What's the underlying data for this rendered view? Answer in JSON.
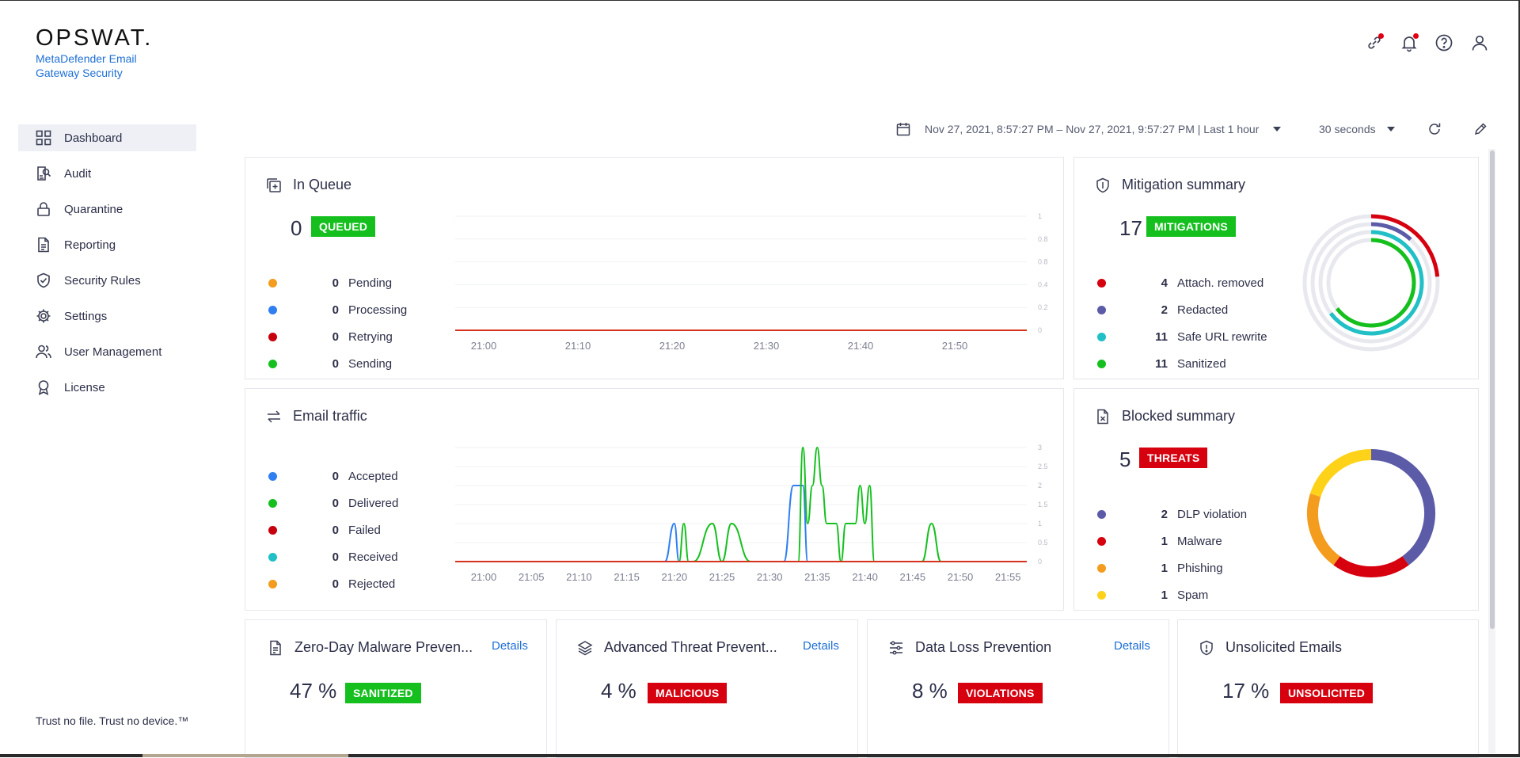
{
  "brand": {
    "logo": "OPSWAT.",
    "product": "MetaDefender Email Gateway Security",
    "tagline": "Trust no file. Trust no device.™"
  },
  "nav": [
    {
      "label": "Dashboard",
      "icon": "grid-icon",
      "active": true
    },
    {
      "label": "Audit",
      "icon": "audit-icon"
    },
    {
      "label": "Quarantine",
      "icon": "lock-icon"
    },
    {
      "label": "Reporting",
      "icon": "document-icon"
    },
    {
      "label": "Security Rules",
      "icon": "shield-check-icon"
    },
    {
      "label": "Settings",
      "icon": "gear-icon"
    },
    {
      "label": "User Management",
      "icon": "users-icon"
    },
    {
      "label": "License",
      "icon": "award-icon"
    }
  ],
  "toolbar": {
    "date_range": "Nov 27, 2021, 8:57:27 PM – Nov 27, 2021, 9:57:27 PM | Last 1 hour",
    "refresh_interval": "30 seconds"
  },
  "colors": {
    "accent": "#1d6fd6",
    "green": "#15c01e",
    "red": "#d6000f",
    "orange": "#f39c1e",
    "blue": "#2f7ff2",
    "purple": "#5b5ba8",
    "teal": "#21c0c6",
    "yellow": "#ffd21a",
    "darkred": "#c6000f"
  },
  "in_queue": {
    "title": "In Queue",
    "count": "0",
    "badge": "QUEUED",
    "items": [
      {
        "value": "0",
        "label": "Pending",
        "color": "#f39c1e"
      },
      {
        "value": "0",
        "label": "Processing",
        "color": "#2f7ff2"
      },
      {
        "value": "0",
        "label": "Retrying",
        "color": "#c6000f"
      },
      {
        "value": "0",
        "label": "Sending",
        "color": "#15c01e"
      }
    ]
  },
  "mitigation": {
    "title": "Mitigation summary",
    "count": "17",
    "badge": "MITIGATIONS",
    "items": [
      {
        "value": "4",
        "label": "Attach. removed",
        "color": "#d6000f"
      },
      {
        "value": "2",
        "label": "Redacted",
        "color": "#5b5ba8"
      },
      {
        "value": "11",
        "label": "Safe URL rewrite",
        "color": "#21c0c6"
      },
      {
        "value": "11",
        "label": "Sanitized",
        "color": "#15c01e"
      }
    ]
  },
  "email_traffic": {
    "title": "Email traffic",
    "items": [
      {
        "value": "0",
        "label": "Accepted",
        "color": "#2f7ff2"
      },
      {
        "value": "0",
        "label": "Delivered",
        "color": "#15c01e"
      },
      {
        "value": "0",
        "label": "Failed",
        "color": "#c6000f"
      },
      {
        "value": "0",
        "label": "Received",
        "color": "#21c0c6"
      },
      {
        "value": "0",
        "label": "Rejected",
        "color": "#f39c1e"
      }
    ]
  },
  "blocked": {
    "title": "Blocked summary",
    "count": "5",
    "badge": "THREATS",
    "items": [
      {
        "value": "2",
        "label": "DLP violation",
        "color": "#5b5ba8"
      },
      {
        "value": "1",
        "label": "Malware",
        "color": "#d6000f"
      },
      {
        "value": "1",
        "label": "Phishing",
        "color": "#f39c1e"
      },
      {
        "value": "1",
        "label": "Spam",
        "color": "#ffd21a"
      }
    ]
  },
  "bottom_cards": [
    {
      "title": "Zero-Day Malware Preven...",
      "details": "Details",
      "percent": "47 %",
      "badge": "SANITIZED",
      "badge_color": "green",
      "icon": "file-scan-icon"
    },
    {
      "title": "Advanced Threat Prevent...",
      "details": "Details",
      "percent": "4 %",
      "badge": "MALICIOUS",
      "badge_color": "red",
      "icon": "layers-icon"
    },
    {
      "title": "Data Loss Prevention",
      "details": "Details",
      "percent": "8 %",
      "badge": "VIOLATIONS",
      "badge_color": "red",
      "icon": "sliders-icon"
    },
    {
      "title": "Unsolicited Emails",
      "details": "",
      "percent": "17 %",
      "badge": "UNSOLICITED",
      "badge_color": "red",
      "icon": "shield-alert-icon"
    }
  ],
  "chart_data": [
    {
      "type": "line",
      "title": "In Queue",
      "x": [
        "21:00",
        "21:10",
        "21:20",
        "21:30",
        "21:40",
        "21:50"
      ],
      "y_ticks": [
        "1",
        "0.8",
        "0.8",
        "0.4",
        "0.2",
        "0"
      ],
      "ylim": [
        0,
        1
      ],
      "series": [
        {
          "name": "Pending",
          "color": "#f39c1e",
          "values": [
            0,
            0,
            0,
            0,
            0,
            0
          ]
        },
        {
          "name": "Processing",
          "color": "#2f7ff2",
          "values": [
            0,
            0,
            0,
            0,
            0,
            0
          ]
        },
        {
          "name": "Retrying",
          "color": "#c6000f",
          "values": [
            0,
            0,
            0,
            0,
            0,
            0
          ]
        },
        {
          "name": "Sending",
          "color": "#15c01e",
          "values": [
            0,
            0,
            0,
            0,
            0,
            0
          ]
        }
      ],
      "grid": true
    },
    {
      "type": "line",
      "title": "Email traffic",
      "x_ticks": [
        "21:00",
        "21:05",
        "21:10",
        "21:15",
        "21:20",
        "21:25",
        "21:30",
        "21:35",
        "21:40",
        "21:45",
        "21:50",
        "21:55"
      ],
      "y_ticks": [
        "3",
        "2.5",
        "2",
        "1.5",
        "1",
        "0.5",
        "0"
      ],
      "ylim": [
        0,
        3
      ],
      "x_minutes": [
        0,
        22,
        23,
        23.5,
        24,
        24.5,
        25,
        27,
        28,
        29,
        31,
        32,
        33,
        34.5,
        35.5,
        36,
        36.5,
        37,
        37.5,
        38,
        38.5,
        39,
        39.5,
        40,
        40.5,
        41,
        42,
        42.5,
        43,
        43.5,
        44,
        44.5,
        45,
        45.5,
        46,
        46.5,
        47,
        47.5,
        48,
        49,
        50,
        51,
        52,
        53,
        56
      ],
      "series": [
        {
          "name": "Accepted",
          "color": "#2f7ff2",
          "values": [
            0,
            0,
            1,
            0,
            0,
            0,
            0,
            0,
            0,
            0,
            0,
            0,
            0,
            0,
            2,
            2,
            2,
            0,
            0,
            0,
            0,
            0,
            0,
            0,
            0,
            0,
            0,
            0,
            0,
            0,
            0,
            0,
            0,
            0,
            0,
            0,
            0,
            0,
            0,
            0,
            0,
            0,
            0,
            0,
            0
          ]
        },
        {
          "name": "Delivered",
          "color": "#15c01e",
          "values": [
            0,
            0,
            0,
            0,
            1,
            0,
            0,
            1,
            0,
            1,
            0,
            0,
            0,
            0,
            0,
            0,
            3,
            1,
            2,
            3,
            2,
            1,
            1,
            1,
            0,
            1,
            1,
            2,
            1,
            2,
            0,
            0,
            0,
            0,
            0,
            0,
            0,
            0,
            0,
            0,
            1,
            0,
            0,
            0,
            0
          ]
        },
        {
          "name": "Failed",
          "color": "#c6000f",
          "values": [
            0,
            0,
            0,
            0,
            0,
            0,
            0,
            0,
            0,
            0,
            0,
            0,
            0,
            0,
            0,
            0,
            0,
            0,
            0,
            0,
            0,
            0,
            0,
            0,
            0,
            0,
            0,
            0,
            0,
            0,
            0,
            0,
            0,
            0,
            0,
            0,
            0,
            0,
            0,
            0,
            0,
            0,
            0,
            0,
            0
          ]
        }
      ],
      "grid": true
    },
    {
      "type": "pie",
      "title": "Mitigation summary",
      "subtype": "concentric-rings",
      "categories": [
        "Attach. removed",
        "Redacted",
        "Safe URL rewrite",
        "Sanitized"
      ],
      "values": [
        4,
        2,
        11,
        11
      ],
      "max": 17
    },
    {
      "type": "pie",
      "title": "Blocked summary",
      "subtype": "donut",
      "categories": [
        "DLP violation",
        "Malware",
        "Phishing",
        "Spam"
      ],
      "values": [
        2,
        1,
        1,
        1
      ]
    }
  ]
}
